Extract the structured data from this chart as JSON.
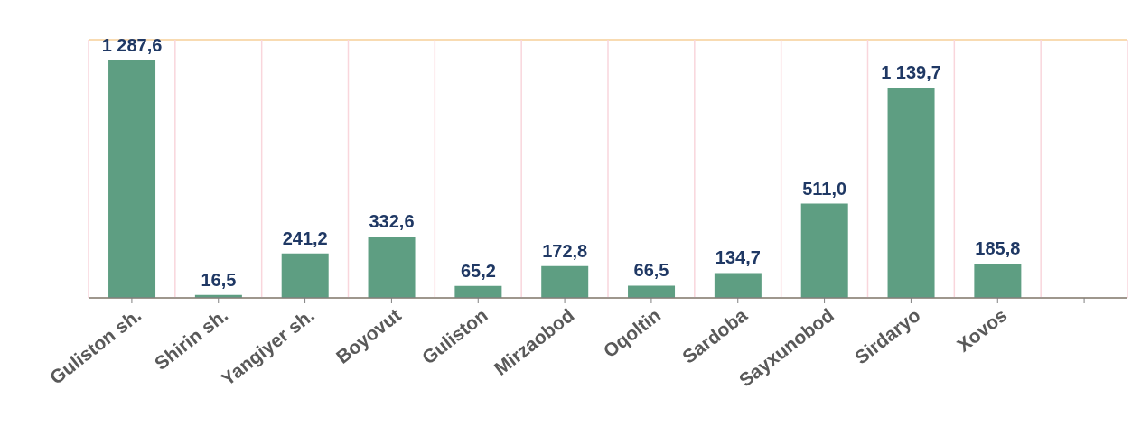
{
  "chart_data": {
    "type": "bar",
    "categories": [
      "Guliston  sh.",
      "Shirin sh.",
      "Yangiyer sh.",
      "Boyovut",
      "Guliston",
      "Mirzaobod",
      "Oqoltin",
      "Sardoba",
      "Sayxunobod",
      "Sirdaryo",
      "Xovos",
      null
    ],
    "values": [
      1287.6,
      16.5,
      241.2,
      332.6,
      65.2,
      172.8,
      66.5,
      134.7,
      511.0,
      1139.7,
      185.8,
      null
    ],
    "value_labels": [
      "1 287,6",
      "16,5",
      "241,2",
      "332,6",
      "65,2",
      "172,8",
      "66,5",
      "134,7",
      "511,0",
      "1 139,7",
      "185,8",
      null
    ],
    "color": "#5e9e82",
    "ylim": [
      0,
      1400
    ],
    "tick_labels": "x",
    "grid": true
  }
}
